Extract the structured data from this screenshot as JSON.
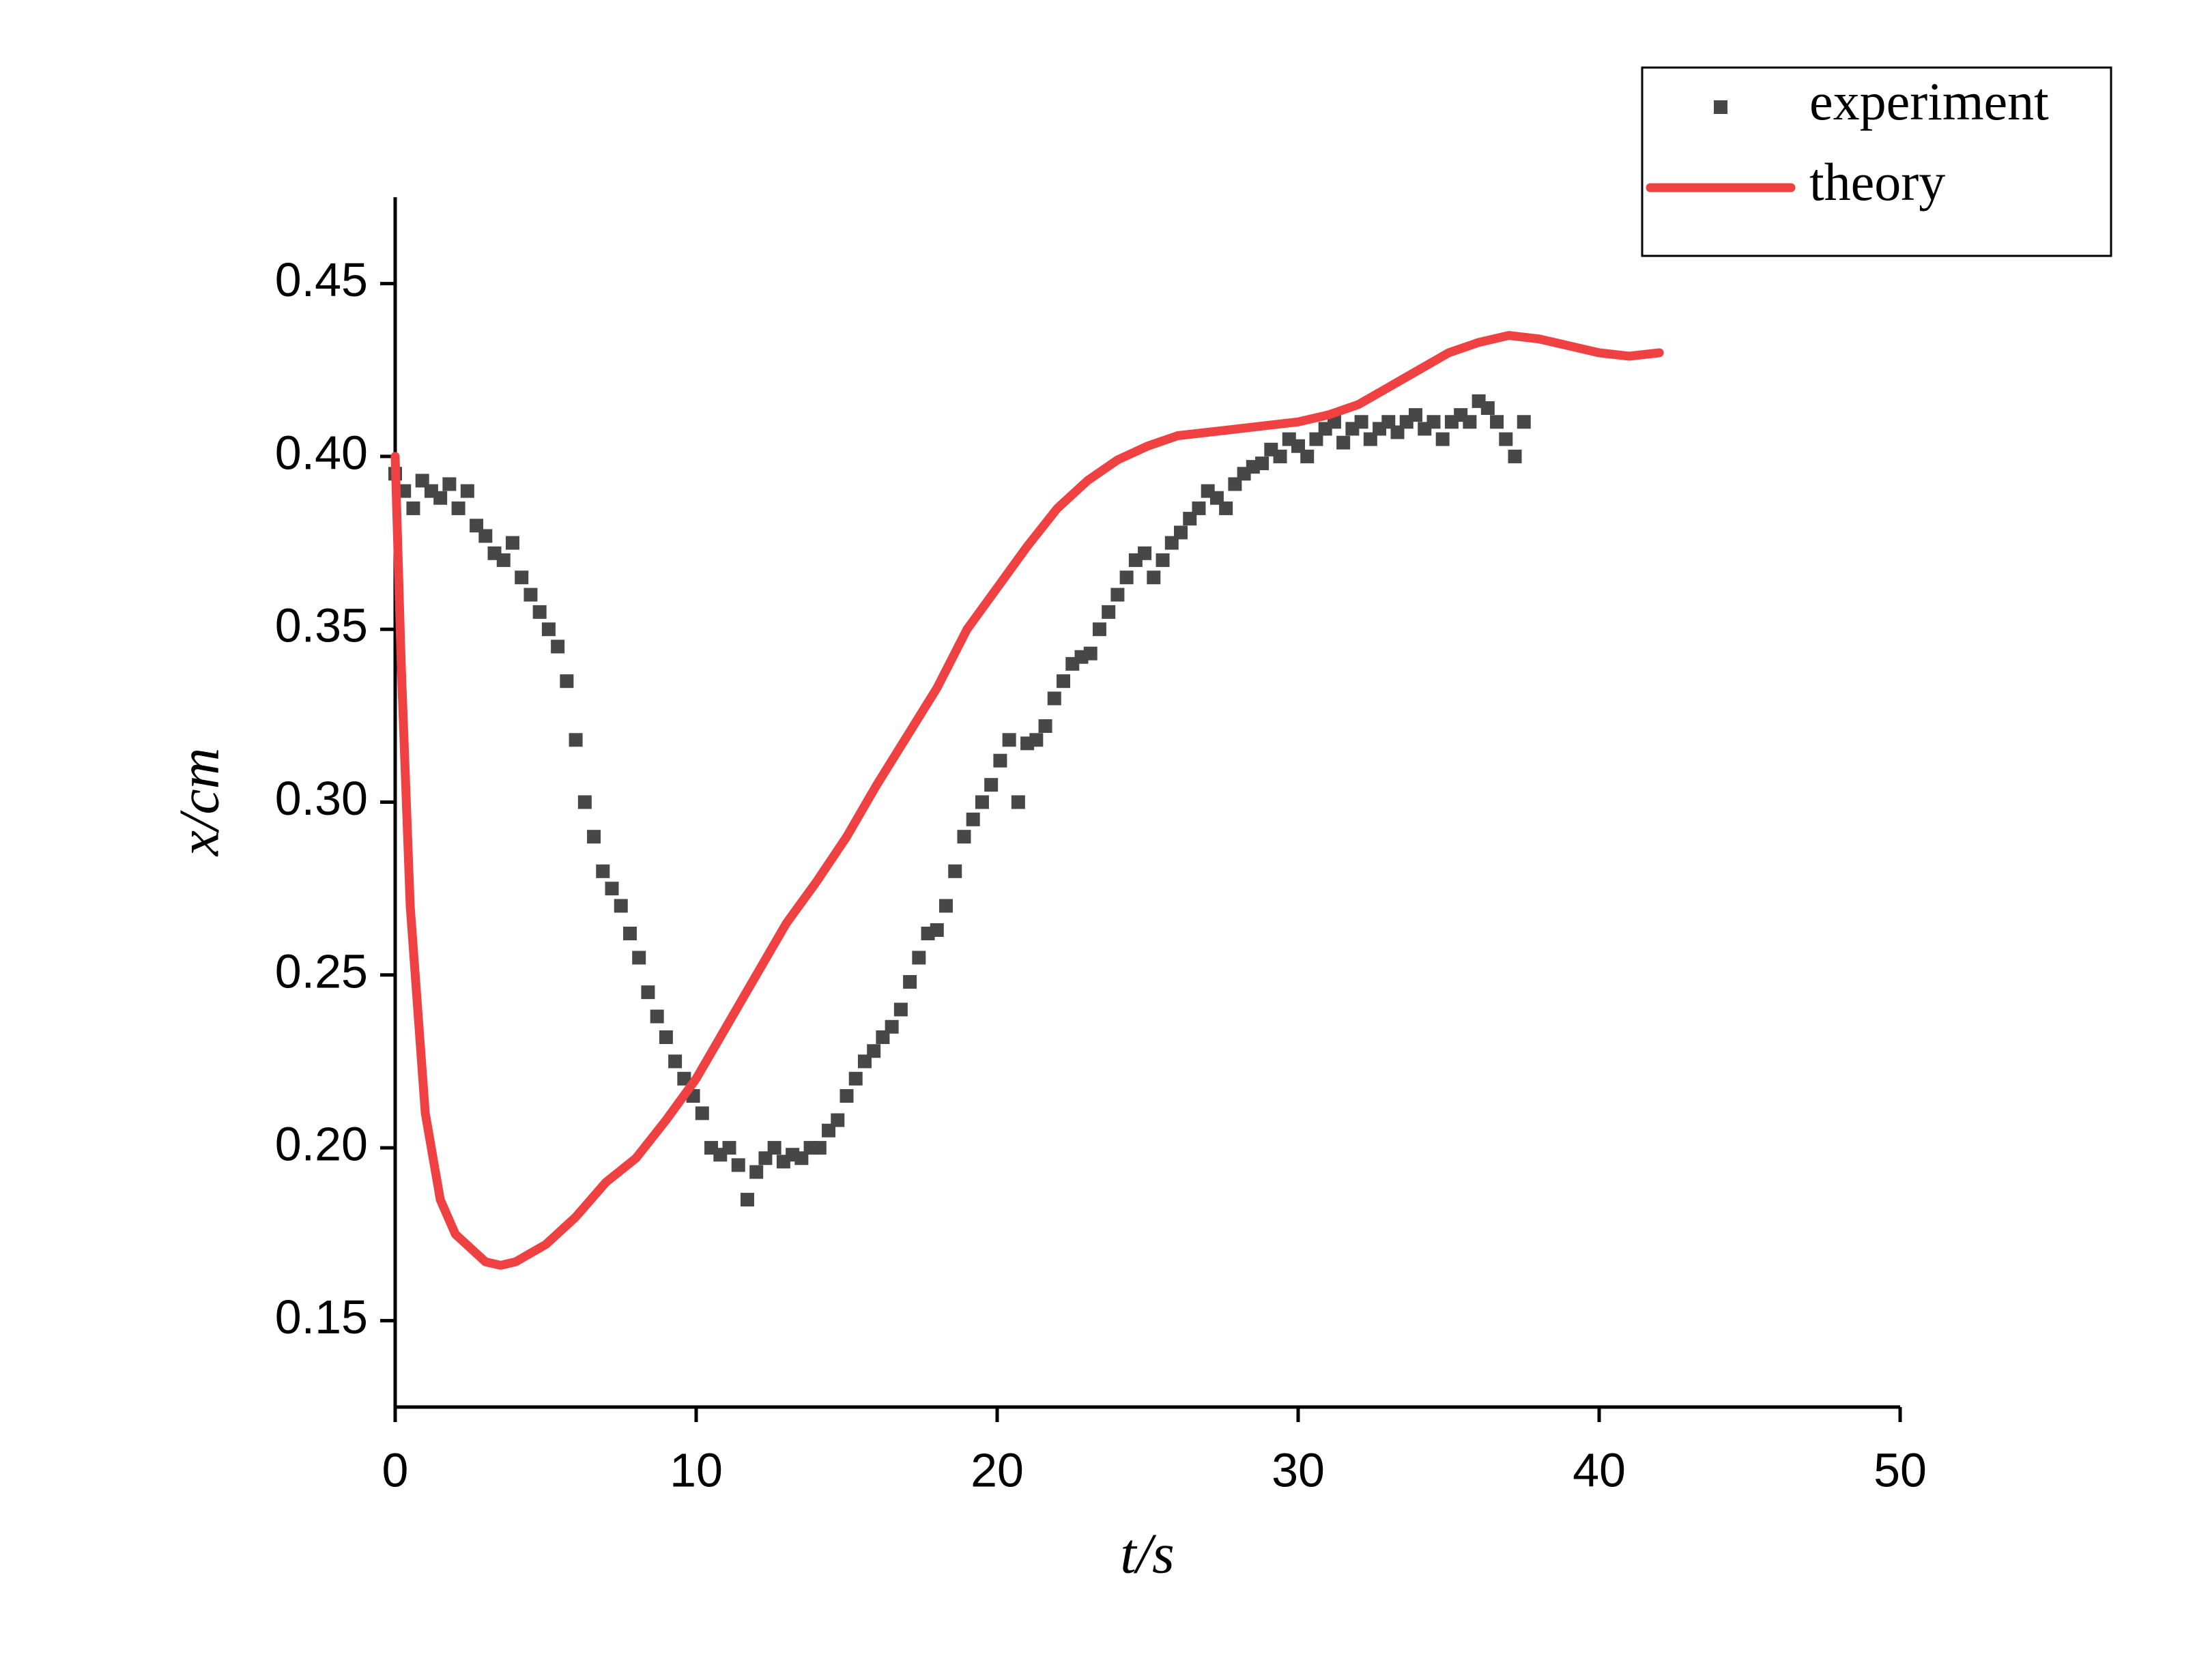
{
  "chart_data": {
    "type": "combo",
    "x_label": "t/s",
    "y_label": "x/cm",
    "xlim": [
      0,
      50
    ],
    "xticks": [
      0,
      10,
      20,
      30,
      40,
      50
    ],
    "ylim": [
      0.125,
      0.475
    ],
    "yticks": [
      0.15,
      {
        "value": 0.2,
        "label": "0.20"
      },
      0.25,
      {
        "value": 0.3,
        "label": "0.30"
      },
      0.35,
      {
        "value": 0.4,
        "label": "0.40"
      },
      0.45
    ],
    "legend": "upper right",
    "series": [
      {
        "name": "experiment",
        "type": "scatter",
        "color": "#474747",
        "x": [
          0,
          0.3,
          0.6,
          0.9,
          1.2,
          1.5,
          1.8,
          2.1,
          2.4,
          2.7,
          3.0,
          3.3,
          3.6,
          3.9,
          4.2,
          4.5,
          4.8,
          5.1,
          5.4,
          5.7,
          6.0,
          6.3,
          6.6,
          6.9,
          7.2,
          7.5,
          7.8,
          8.1,
          8.4,
          8.7,
          9.0,
          9.3,
          9.6,
          9.9,
          10.2,
          10.5,
          10.8,
          11.1,
          11.4,
          11.7,
          12.0,
          12.3,
          12.6,
          12.9,
          13.2,
          13.5,
          13.8,
          14.1,
          14.4,
          14.7,
          15.0,
          15.3,
          15.6,
          15.9,
          16.2,
          16.5,
          16.8,
          17.1,
          17.4,
          17.7,
          18.0,
          18.3,
          18.6,
          18.9,
          19.2,
          19.5,
          19.8,
          20.1,
          20.4,
          20.7,
          21.0,
          21.3,
          21.6,
          21.9,
          22.2,
          22.5,
          22.8,
          23.1,
          23.4,
          23.7,
          24.0,
          24.3,
          24.6,
          24.9,
          25.2,
          25.5,
          25.8,
          26.1,
          26.4,
          26.7,
          27.0,
          27.3,
          27.6,
          27.9,
          28.2,
          28.5,
          28.8,
          29.1,
          29.4,
          29.7,
          30.0,
          30.3,
          30.6,
          30.9,
          31.2,
          31.5,
          31.8,
          32.1,
          32.4,
          32.7,
          33.0,
          33.3,
          33.6,
          33.9,
          34.2,
          34.5,
          34.8,
          35.1,
          35.4,
          35.7,
          36.0,
          36.3,
          36.6,
          36.9,
          37.2,
          37.5
        ],
        "values": [
          0.395,
          0.39,
          0.385,
          0.393,
          0.39,
          0.388,
          0.392,
          0.385,
          0.39,
          0.38,
          0.377,
          0.372,
          0.37,
          0.375,
          0.365,
          0.36,
          0.355,
          0.35,
          0.345,
          0.335,
          0.318,
          0.3,
          0.29,
          0.28,
          0.275,
          0.27,
          0.262,
          0.255,
          0.245,
          0.238,
          0.232,
          0.225,
          0.22,
          0.215,
          0.21,
          0.2,
          0.198,
          0.2,
          0.195,
          0.185,
          0.193,
          0.197,
          0.2,
          0.196,
          0.198,
          0.197,
          0.2,
          0.2,
          0.205,
          0.208,
          0.215,
          0.22,
          0.225,
          0.228,
          0.232,
          0.235,
          0.24,
          0.248,
          0.255,
          0.262,
          0.263,
          0.27,
          0.28,
          0.29,
          0.295,
          0.3,
          0.305,
          0.312,
          0.318,
          0.3,
          0.317,
          0.318,
          0.322,
          0.33,
          0.335,
          0.34,
          0.342,
          0.343,
          0.35,
          0.355,
          0.36,
          0.365,
          0.37,
          0.372,
          0.365,
          0.37,
          0.375,
          0.378,
          0.382,
          0.385,
          0.39,
          0.388,
          0.385,
          0.392,
          0.395,
          0.397,
          0.398,
          0.402,
          0.4,
          0.405,
          0.403,
          0.4,
          0.405,
          0.408,
          0.41,
          0.404,
          0.408,
          0.41,
          0.405,
          0.408,
          0.41,
          0.407,
          0.41,
          0.412,
          0.408,
          0.41,
          0.405,
          0.41,
          0.412,
          0.41,
          0.416,
          0.414,
          0.41,
          0.405,
          0.4,
          0.41
        ]
      },
      {
        "name": "theory",
        "type": "line",
        "color": "#ef4141",
        "x": [
          0,
          0.2,
          0.5,
          1,
          1.5,
          2,
          3,
          3.5,
          4,
          5,
          6,
          7,
          8,
          9,
          10,
          11,
          12,
          13,
          14,
          15,
          16,
          17,
          18,
          19,
          20,
          21,
          22,
          23,
          24,
          25,
          26,
          27,
          28,
          29,
          30,
          31,
          32,
          33,
          34,
          35,
          36,
          37,
          38,
          39,
          40,
          41,
          42
        ],
        "values": [
          0.4,
          0.34,
          0.27,
          0.21,
          0.185,
          0.175,
          0.167,
          0.166,
          0.167,
          0.172,
          0.18,
          0.19,
          0.197,
          0.208,
          0.22,
          0.235,
          0.25,
          0.265,
          0.277,
          0.29,
          0.305,
          0.319,
          0.333,
          0.35,
          0.362,
          0.374,
          0.385,
          0.393,
          0.399,
          0.403,
          0.406,
          0.407,
          0.408,
          0.409,
          0.41,
          0.412,
          0.415,
          0.42,
          0.425,
          0.43,
          0.433,
          0.435,
          0.434,
          0.432,
          0.43,
          0.429,
          0.43
        ]
      }
    ]
  }
}
